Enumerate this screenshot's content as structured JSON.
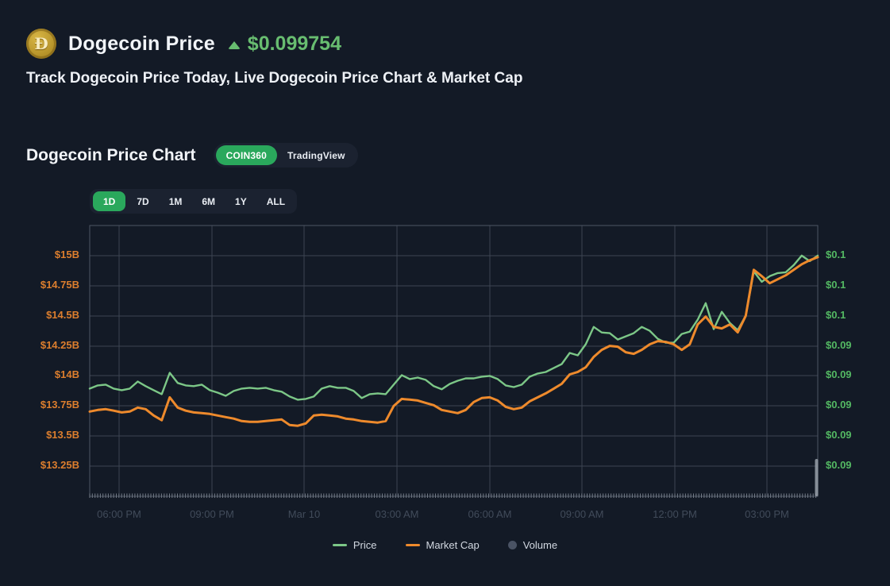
{
  "header": {
    "coin": "Dogecoin",
    "coin_symbol": "Đ",
    "title": "Dogecoin Price",
    "change_direction": "up",
    "price": "$0.099754",
    "subtitle": "Track Dogecoin Price Today, Live Dogecoin Price Chart & Market Cap"
  },
  "chart_section": {
    "title": "Dogecoin Price Chart",
    "source_tabs": [
      {
        "label": "COIN360",
        "active": true
      },
      {
        "label": "TradingView",
        "active": false
      }
    ],
    "range_buttons": [
      {
        "label": "1D",
        "active": true
      },
      {
        "label": "7D",
        "active": false
      },
      {
        "label": "1M",
        "active": false
      },
      {
        "label": "6M",
        "active": false
      },
      {
        "label": "1Y",
        "active": false
      },
      {
        "label": "ALL",
        "active": false
      }
    ]
  },
  "colors": {
    "background": "#131a26",
    "panel": "#1b2230",
    "accent_green": "#2aa85c",
    "price_text_green": "#68bd70",
    "price_line_green": "#7cc787",
    "market_cap_orange": "#ee8a2c",
    "left_axis_label": "#dc7e2e",
    "right_axis_label": "#54b963",
    "gridline": "#3c4452",
    "axis_border": "#4e5664",
    "x_label": "#414b5a",
    "volume_gray": "#4a5364"
  },
  "chart_data": {
    "type": "line",
    "title": "Dogecoin Price Chart",
    "grid": true,
    "legend_position": "bottom",
    "x_tick_labels": [
      "06:00 PM",
      "09:00 PM",
      "Mar 10",
      "03:00 AM",
      "06:00 AM",
      "09:00 AM",
      "12:00 PM",
      "03:00 PM"
    ],
    "left_axis": {
      "name": "Market Cap",
      "unit": "USD billions",
      "tick_labels": [
        "$15B",
        "$14.75B",
        "$14.5B",
        "$14.25B",
        "$14B",
        "$13.75B",
        "$13.5B",
        "$13.25B"
      ],
      "domain": [
        13.0,
        15.25
      ],
      "color": "#dc7e2e"
    },
    "right_axis": {
      "name": "Price",
      "unit": "USD",
      "tick_labels": [
        "$0.1",
        "$0.1",
        "$0.1",
        "$0.09",
        "$0.09",
        "$0.09",
        "$0.09",
        "$0.09"
      ],
      "domain": [
        0.0845,
        0.1025
      ],
      "color": "#54b963"
    },
    "series": [
      {
        "name": "Price",
        "axis": "right",
        "color": "#7cc787",
        "width": 2.4,
        "values": [
          0.09166,
          0.09187,
          0.09192,
          0.09166,
          0.09155,
          0.09166,
          0.09213,
          0.09182,
          0.09155,
          0.09129,
          0.09271,
          0.09203,
          0.09187,
          0.09182,
          0.09192,
          0.09155,
          0.09139,
          0.09118,
          0.0915,
          0.09166,
          0.09171,
          0.09166,
          0.09171,
          0.09155,
          0.09145,
          0.09113,
          0.09092,
          0.09097,
          0.09113,
          0.09166,
          0.09182,
          0.09171,
          0.09171,
          0.0915,
          0.09103,
          0.09129,
          0.09134,
          0.09129,
          0.09192,
          0.09255,
          0.09229,
          0.09239,
          0.09224,
          0.09182,
          0.09161,
          0.09197,
          0.09218,
          0.09234,
          0.09234,
          0.09245,
          0.0925,
          0.09229,
          0.09187,
          0.09176,
          0.09192,
          0.09245,
          0.09266,
          0.09276,
          0.09303,
          0.09329,
          0.09403,
          0.09387,
          0.09461,
          0.09576,
          0.09539,
          0.09534,
          0.09492,
          0.09513,
          0.09534,
          0.09576,
          0.0955,
          0.09497,
          0.09471,
          0.09471,
          0.09529,
          0.09545,
          0.09624,
          0.09734,
          0.09561,
          0.09676,
          0.09603,
          0.09555,
          0.0965,
          0.09945,
          0.09876,
          0.09913,
          0.09934,
          0.09939,
          0.09987,
          0.1005,
          0.10013,
          0.1005
        ]
      },
      {
        "name": "Market Cap",
        "axis": "left",
        "color": "#ee8a2c",
        "width": 3,
        "values": [
          13.704,
          13.717,
          13.724,
          13.711,
          13.697,
          13.704,
          13.737,
          13.724,
          13.671,
          13.632,
          13.822,
          13.737,
          13.711,
          13.697,
          13.691,
          13.684,
          13.671,
          13.658,
          13.645,
          13.625,
          13.618,
          13.618,
          13.625,
          13.632,
          13.638,
          13.592,
          13.586,
          13.605,
          13.671,
          13.678,
          13.671,
          13.664,
          13.645,
          13.638,
          13.625,
          13.618,
          13.612,
          13.625,
          13.75,
          13.809,
          13.803,
          13.796,
          13.776,
          13.757,
          13.717,
          13.704,
          13.691,
          13.717,
          13.783,
          13.816,
          13.822,
          13.796,
          13.743,
          13.724,
          13.737,
          13.789,
          13.822,
          13.855,
          13.895,
          13.934,
          14.013,
          14.033,
          14.072,
          14.158,
          14.217,
          14.25,
          14.243,
          14.197,
          14.184,
          14.217,
          14.263,
          14.289,
          14.283,
          14.263,
          14.217,
          14.263,
          14.428,
          14.493,
          14.408,
          14.395,
          14.428,
          14.362,
          14.5,
          14.882,
          14.829,
          14.77,
          14.803,
          14.836,
          14.882,
          14.928,
          14.961,
          14.987
        ]
      },
      {
        "name": "Volume",
        "axis": "none",
        "color": "#4a5364",
        "visible": false,
        "values": []
      }
    ],
    "legend": [
      {
        "label": "Price",
        "marker": "line",
        "color": "#7cc787"
      },
      {
        "label": "Market Cap",
        "marker": "line",
        "color": "#ee8a2c"
      },
      {
        "label": "Volume",
        "marker": "circle",
        "color": "#4a5364"
      }
    ]
  }
}
